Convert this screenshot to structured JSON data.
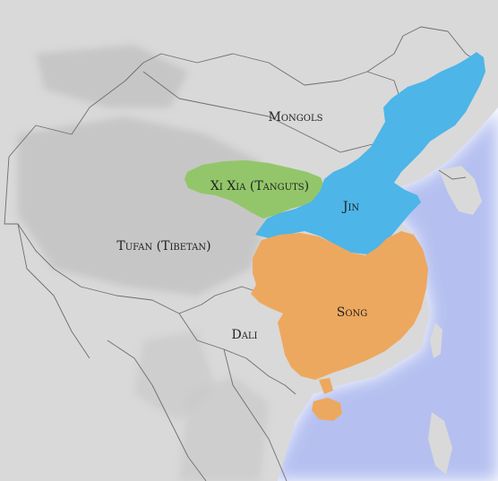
{
  "map": {
    "colors": {
      "sea": "#ffffff",
      "coast_glow": "#a9b6ee",
      "land": "#d9d9d9",
      "relief": "#c4c4c4",
      "border": "#6e6e6e",
      "xi_xia": "#93c66a",
      "jin": "#4db5e8",
      "song": "#eda85f"
    },
    "labels": {
      "mongols": "Mongols",
      "xi_xia": "Xi Xia (Tanguts)",
      "jin": "Jin",
      "tufan": "Tufan (Tibetan)",
      "song": "Song",
      "dali": "Dali"
    }
  }
}
